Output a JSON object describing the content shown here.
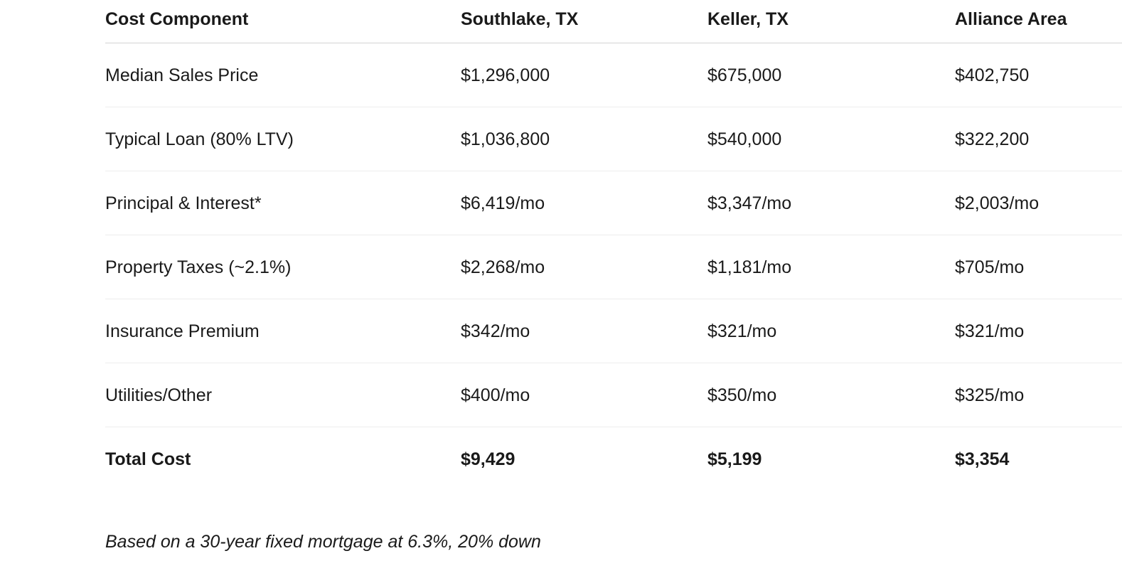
{
  "table": {
    "columns": [
      "Cost Component",
      "Southlake, TX",
      "Keller, TX",
      "Alliance Area"
    ],
    "rows": [
      {
        "label": "Median Sales Price",
        "values": [
          "$1,296,000",
          "$675,000",
          "$402,750"
        ],
        "bold": false
      },
      {
        "label": "Typical Loan (80% LTV)",
        "values": [
          "$1,036,800",
          "$540,000",
          "$322,200"
        ],
        "bold": false
      },
      {
        "label": "Principal & Interest*",
        "values": [
          "$6,419/mo",
          "$3,347/mo",
          "$2,003/mo"
        ],
        "bold": false
      },
      {
        "label": "Property Taxes (~2.1%)",
        "values": [
          "$2,268/mo",
          "$1,181/mo",
          "$705/mo"
        ],
        "bold": false
      },
      {
        "label": "Insurance Premium",
        "values": [
          "$342/mo",
          "$321/mo",
          "$321/mo"
        ],
        "bold": false
      },
      {
        "label": "Utilities/Other",
        "values": [
          "$400/mo",
          "$350/mo",
          "$325/mo"
        ],
        "bold": false
      },
      {
        "label": "Total Cost",
        "values": [
          "$9,429",
          "$5,199",
          "$3,354"
        ],
        "bold": true
      }
    ],
    "footnote": "Based on a 30-year fixed mortgage at 6.3%, 20% down"
  },
  "colors": {
    "background": "#ffffff",
    "text": "#1a1a1a",
    "header_divider": "#d4d4d4",
    "row_divider": "#ededed"
  }
}
